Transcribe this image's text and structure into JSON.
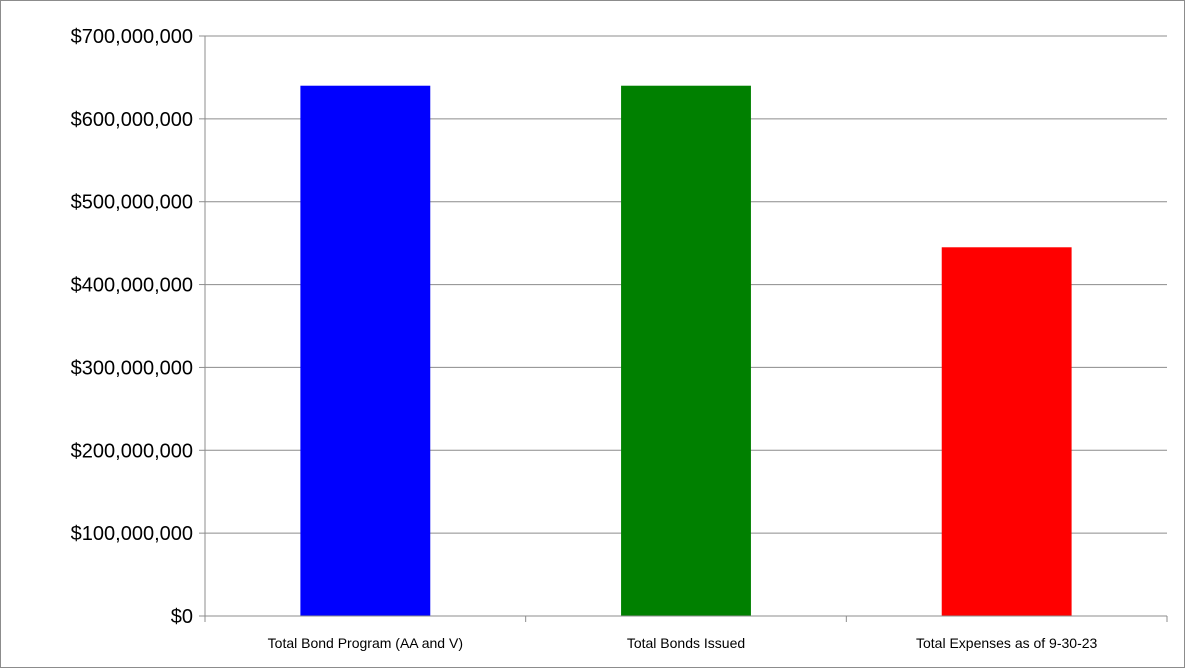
{
  "chart_data": {
    "type": "bar",
    "title": "",
    "xlabel": "",
    "ylabel": "",
    "categories": [
      "Total Bond Program (AA and V)",
      "Total Bonds Issued",
      "Total Expenses as of 9-30-23"
    ],
    "series": [
      {
        "values": [
          640000000,
          640000000,
          445000000
        ]
      }
    ],
    "bar_colors": [
      "#0000ff",
      "#008000",
      "#ff0000"
    ],
    "ylim": [
      0,
      700000000
    ],
    "yticks": [
      0,
      100000000,
      200000000,
      300000000,
      400000000,
      500000000,
      600000000,
      700000000
    ],
    "ytick_labels": [
      "$0",
      "$100,000,000",
      "$200,000,000",
      "$300,000,000",
      "$400,000,000",
      "$500,000,000",
      "$600,000,000",
      "$700,000,000"
    ],
    "grid": true,
    "legend": "none",
    "gridline_color": "#8c8c8c",
    "axis_color": "#8c8c8c"
  }
}
